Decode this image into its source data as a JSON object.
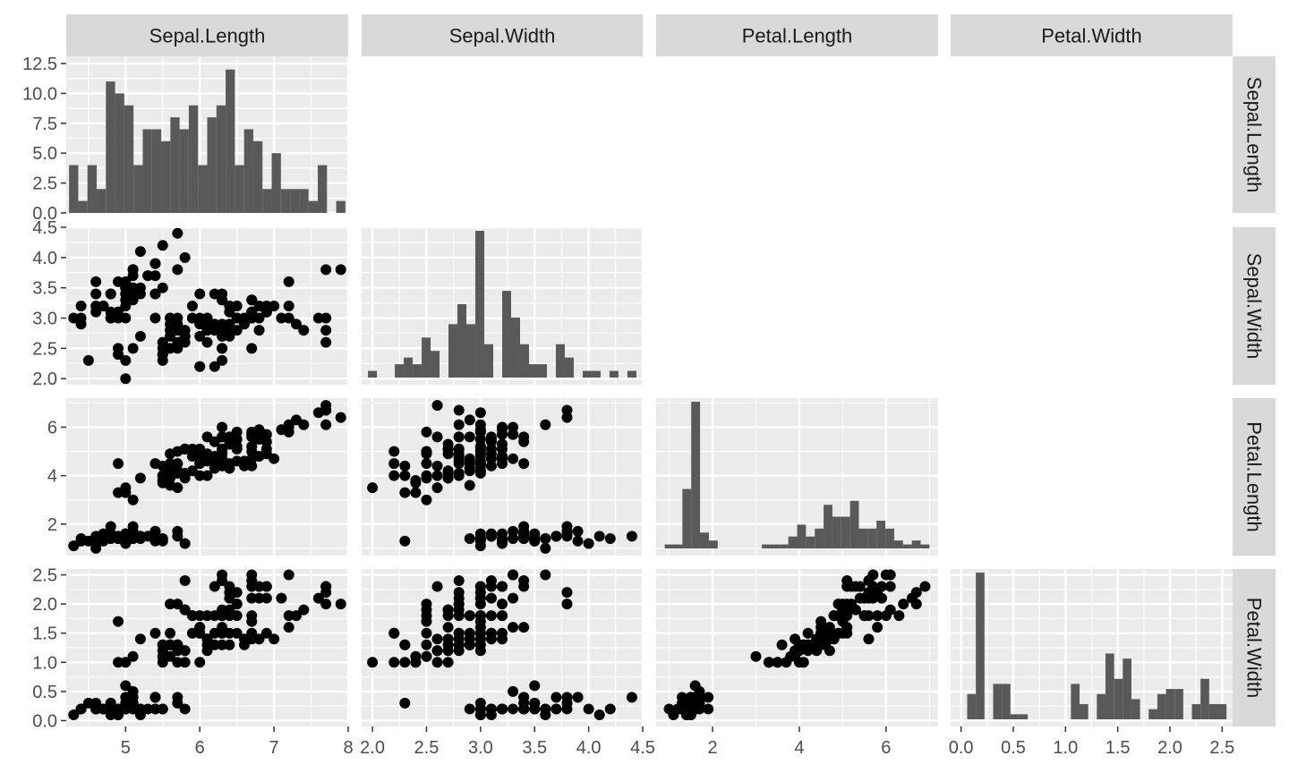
{
  "chart_data": {
    "type": "scatter",
    "variables": [
      "Sepal.Length",
      "Sepal.Width",
      "Petal.Length",
      "Petal.Width"
    ],
    "layout": "lower-triangle scatterplot matrix; histograms on diagonal; column strips on top, row strips on right",
    "grid": true,
    "x_ticks": [
      [
        "5",
        "6",
        "7",
        "8"
      ],
      [
        "2.0",
        "2.5",
        "3.0",
        "3.5",
        "4.0",
        "4.5"
      ],
      [
        "2",
        "4",
        "6"
      ],
      [
        "0.0",
        "0.5",
        "1.0",
        "1.5",
        "2.0",
        "2.5"
      ]
    ],
    "y_ticks": [
      [
        "0.0",
        "2.5",
        "5.0",
        "7.5",
        "10.0",
        "12.5"
      ],
      [
        "2.0",
        "2.5",
        "3.0",
        "3.5",
        "4.0",
        "4.5"
      ],
      [
        "2",
        "4",
        "6"
      ],
      [
        "0.0",
        "0.5",
        "1.0",
        "1.5",
        "2.0",
        "2.5"
      ]
    ],
    "histograms": [
      {
        "variable": "Sepal.Length",
        "bins": 30,
        "range": [
          4.3,
          7.9
        ],
        "counts": [
          4,
          1,
          4,
          2,
          11,
          10,
          9,
          4,
          7,
          7,
          6,
          8,
          7,
          9,
          4,
          8,
          9,
          12,
          4,
          7,
          6,
          2,
          5,
          2,
          2,
          2,
          1,
          4,
          0,
          1
        ]
      },
      {
        "variable": "Sepal.Width",
        "bins": 30,
        "range": [
          2.0,
          4.4
        ],
        "counts": [
          1,
          0,
          0,
          2,
          3,
          2,
          6,
          4,
          0,
          8,
          11,
          8,
          22,
          5,
          0,
          13,
          9,
          5,
          2,
          2,
          0,
          5,
          3,
          0,
          1,
          1,
          0,
          1,
          0,
          1
        ]
      },
      {
        "variable": "Petal.Length",
        "bins": 30,
        "range": [
          1.0,
          6.9
        ],
        "counts": [
          1,
          1,
          15,
          37,
          4,
          2,
          0,
          0,
          0,
          0,
          0,
          1,
          1,
          1,
          3,
          6,
          3,
          5,
          11,
          8,
          8,
          12,
          5,
          5,
          7,
          5,
          2,
          1,
          2,
          1
        ]
      },
      {
        "variable": "Petal.Width",
        "bins": 30,
        "range": [
          0.1,
          2.5
        ],
        "counts": [
          5,
          29,
          0,
          7,
          7,
          1,
          1,
          0,
          0,
          0,
          0,
          0,
          7,
          3,
          0,
          5,
          13,
          8,
          12,
          4,
          0,
          2,
          5,
          6,
          6,
          0,
          3,
          8,
          3,
          3
        ]
      }
    ],
    "observations": [
      [
        5.1,
        3.5,
        1.4,
        0.2
      ],
      [
        4.9,
        3.0,
        1.4,
        0.2
      ],
      [
        4.7,
        3.2,
        1.3,
        0.2
      ],
      [
        4.6,
        3.1,
        1.5,
        0.2
      ],
      [
        5.0,
        3.6,
        1.4,
        0.2
      ],
      [
        5.4,
        3.9,
        1.7,
        0.4
      ],
      [
        4.6,
        3.4,
        1.4,
        0.3
      ],
      [
        5.0,
        3.4,
        1.5,
        0.2
      ],
      [
        4.4,
        2.9,
        1.4,
        0.2
      ],
      [
        4.9,
        3.1,
        1.5,
        0.1
      ],
      [
        5.4,
        3.7,
        1.5,
        0.2
      ],
      [
        4.8,
        3.4,
        1.6,
        0.2
      ],
      [
        4.8,
        3.0,
        1.4,
        0.1
      ],
      [
        4.3,
        3.0,
        1.1,
        0.1
      ],
      [
        5.8,
        4.0,
        1.2,
        0.2
      ],
      [
        5.7,
        4.4,
        1.5,
        0.4
      ],
      [
        5.4,
        3.9,
        1.3,
        0.4
      ],
      [
        5.1,
        3.5,
        1.4,
        0.3
      ],
      [
        5.7,
        3.8,
        1.7,
        0.3
      ],
      [
        5.1,
        3.8,
        1.5,
        0.3
      ],
      [
        5.4,
        3.4,
        1.7,
        0.2
      ],
      [
        5.1,
        3.7,
        1.5,
        0.4
      ],
      [
        4.6,
        3.6,
        1.0,
        0.2
      ],
      [
        5.1,
        3.3,
        1.7,
        0.5
      ],
      [
        4.8,
        3.4,
        1.9,
        0.2
      ],
      [
        5.0,
        3.0,
        1.6,
        0.2
      ],
      [
        5.0,
        3.4,
        1.6,
        0.4
      ],
      [
        5.2,
        3.5,
        1.5,
        0.2
      ],
      [
        5.2,
        3.4,
        1.4,
        0.2
      ],
      [
        4.7,
        3.2,
        1.6,
        0.2
      ],
      [
        4.8,
        3.1,
        1.6,
        0.2
      ],
      [
        5.4,
        3.4,
        1.5,
        0.4
      ],
      [
        5.2,
        4.1,
        1.5,
        0.1
      ],
      [
        5.5,
        4.2,
        1.4,
        0.2
      ],
      [
        4.9,
        3.1,
        1.5,
        0.2
      ],
      [
        5.0,
        3.2,
        1.2,
        0.2
      ],
      [
        5.5,
        3.5,
        1.3,
        0.2
      ],
      [
        4.9,
        3.6,
        1.4,
        0.1
      ],
      [
        4.4,
        3.0,
        1.3,
        0.2
      ],
      [
        5.1,
        3.4,
        1.5,
        0.2
      ],
      [
        5.0,
        3.5,
        1.3,
        0.3
      ],
      [
        4.5,
        2.3,
        1.3,
        0.3
      ],
      [
        4.4,
        3.2,
        1.3,
        0.2
      ],
      [
        5.0,
        3.5,
        1.6,
        0.6
      ],
      [
        5.1,
        3.8,
        1.9,
        0.4
      ],
      [
        4.8,
        3.0,
        1.4,
        0.3
      ],
      [
        5.1,
        3.8,
        1.6,
        0.2
      ],
      [
        4.6,
        3.2,
        1.4,
        0.2
      ],
      [
        5.3,
        3.7,
        1.5,
        0.2
      ],
      [
        5.0,
        3.3,
        1.4,
        0.2
      ],
      [
        7.0,
        3.2,
        4.7,
        1.4
      ],
      [
        6.4,
        3.2,
        4.5,
        1.5
      ],
      [
        6.9,
        3.1,
        4.9,
        1.5
      ],
      [
        5.5,
        2.3,
        4.0,
        1.3
      ],
      [
        6.5,
        2.8,
        4.6,
        1.5
      ],
      [
        5.7,
        2.8,
        4.5,
        1.3
      ],
      [
        6.3,
        3.3,
        4.7,
        1.6
      ],
      [
        4.9,
        2.4,
        3.3,
        1.0
      ],
      [
        6.6,
        2.9,
        4.6,
        1.3
      ],
      [
        5.2,
        2.7,
        3.9,
        1.4
      ],
      [
        5.0,
        2.0,
        3.5,
        1.0
      ],
      [
        5.9,
        3.0,
        4.2,
        1.5
      ],
      [
        6.0,
        2.2,
        4.0,
        1.0
      ],
      [
        6.1,
        2.9,
        4.7,
        1.4
      ],
      [
        5.6,
        2.9,
        3.6,
        1.3
      ],
      [
        6.7,
        3.1,
        4.4,
        1.4
      ],
      [
        5.6,
        3.0,
        4.5,
        1.5
      ],
      [
        5.8,
        2.7,
        4.1,
        1.0
      ],
      [
        6.2,
        2.2,
        4.5,
        1.5
      ],
      [
        5.6,
        2.5,
        3.9,
        1.1
      ],
      [
        5.9,
        3.2,
        4.8,
        1.8
      ],
      [
        6.1,
        2.8,
        4.0,
        1.3
      ],
      [
        6.3,
        2.5,
        4.9,
        1.5
      ],
      [
        6.1,
        2.8,
        4.7,
        1.2
      ],
      [
        6.4,
        2.9,
        4.3,
        1.3
      ],
      [
        6.6,
        3.0,
        4.4,
        1.4
      ],
      [
        6.8,
        2.8,
        4.8,
        1.4
      ],
      [
        6.7,
        3.0,
        5.0,
        1.7
      ],
      [
        6.0,
        2.9,
        4.5,
        1.5
      ],
      [
        5.7,
        2.6,
        3.5,
        1.0
      ],
      [
        5.5,
        2.4,
        3.8,
        1.1
      ],
      [
        5.5,
        2.4,
        3.7,
        1.0
      ],
      [
        5.8,
        2.7,
        3.9,
        1.2
      ],
      [
        6.0,
        2.7,
        5.1,
        1.6
      ],
      [
        5.4,
        3.0,
        4.5,
        1.5
      ],
      [
        6.0,
        3.4,
        4.5,
        1.6
      ],
      [
        6.7,
        3.1,
        4.7,
        1.5
      ],
      [
        6.3,
        2.3,
        4.4,
        1.3
      ],
      [
        5.6,
        3.0,
        4.1,
        1.3
      ],
      [
        5.5,
        2.5,
        4.0,
        1.3
      ],
      [
        5.5,
        2.6,
        4.4,
        1.2
      ],
      [
        6.1,
        3.0,
        4.6,
        1.4
      ],
      [
        5.8,
        2.6,
        4.0,
        1.2
      ],
      [
        5.0,
        2.3,
        3.3,
        1.0
      ],
      [
        5.6,
        2.7,
        4.2,
        1.3
      ],
      [
        5.7,
        3.0,
        4.2,
        1.2
      ],
      [
        5.7,
        2.9,
        4.2,
        1.3
      ],
      [
        6.2,
        2.9,
        4.3,
        1.3
      ],
      [
        5.1,
        2.5,
        3.0,
        1.1
      ],
      [
        5.7,
        2.8,
        4.1,
        1.3
      ],
      [
        6.3,
        3.3,
        6.0,
        2.5
      ],
      [
        5.8,
        2.7,
        5.1,
        1.9
      ],
      [
        7.1,
        3.0,
        5.9,
        2.1
      ],
      [
        6.3,
        2.9,
        5.6,
        1.8
      ],
      [
        6.5,
        3.0,
        5.8,
        2.2
      ],
      [
        7.6,
        3.0,
        6.6,
        2.1
      ],
      [
        4.9,
        2.5,
        4.5,
        1.7
      ],
      [
        7.3,
        2.9,
        6.3,
        1.8
      ],
      [
        6.7,
        2.5,
        5.8,
        1.8
      ],
      [
        7.2,
        3.6,
        6.1,
        2.5
      ],
      [
        6.5,
        3.2,
        5.1,
        2.0
      ],
      [
        6.4,
        2.7,
        5.3,
        1.9
      ],
      [
        6.8,
        3.0,
        5.5,
        2.1
      ],
      [
        5.7,
        2.5,
        5.0,
        2.0
      ],
      [
        5.8,
        2.8,
        5.1,
        2.4
      ],
      [
        6.4,
        3.2,
        5.3,
        2.3
      ],
      [
        6.5,
        3.0,
        5.5,
        1.8
      ],
      [
        7.7,
        3.8,
        6.7,
        2.2
      ],
      [
        7.7,
        2.6,
        6.9,
        2.3
      ],
      [
        6.0,
        2.2,
        5.0,
        1.5
      ],
      [
        6.9,
        3.2,
        5.7,
        2.3
      ],
      [
        5.6,
        2.8,
        4.9,
        2.0
      ],
      [
        7.7,
        2.8,
        6.7,
        2.0
      ],
      [
        6.3,
        2.7,
        4.9,
        1.8
      ],
      [
        6.7,
        3.3,
        5.7,
        2.1
      ],
      [
        7.2,
        3.2,
        6.0,
        1.8
      ],
      [
        6.2,
        2.8,
        4.8,
        1.8
      ],
      [
        6.1,
        3.0,
        4.9,
        1.8
      ],
      [
        6.4,
        2.8,
        5.6,
        2.1
      ],
      [
        7.2,
        3.0,
        5.8,
        1.6
      ],
      [
        7.4,
        2.8,
        6.1,
        1.9
      ],
      [
        7.9,
        3.8,
        6.4,
        2.0
      ],
      [
        6.4,
        2.8,
        5.6,
        2.2
      ],
      [
        6.3,
        2.8,
        5.1,
        1.5
      ],
      [
        6.1,
        2.6,
        5.6,
        1.4
      ],
      [
        7.7,
        3.0,
        6.1,
        2.3
      ],
      [
        6.3,
        3.4,
        5.6,
        2.4
      ],
      [
        6.4,
        3.1,
        5.5,
        1.8
      ],
      [
        6.0,
        3.0,
        4.8,
        1.8
      ],
      [
        6.9,
        3.1,
        5.4,
        2.1
      ],
      [
        6.7,
        3.1,
        5.6,
        2.4
      ],
      [
        6.9,
        3.1,
        5.1,
        2.3
      ],
      [
        5.8,
        2.7,
        5.1,
        1.9
      ],
      [
        6.8,
        3.2,
        5.9,
        2.3
      ],
      [
        6.7,
        3.3,
        5.7,
        2.5
      ],
      [
        6.7,
        3.0,
        5.2,
        2.3
      ],
      [
        6.3,
        2.5,
        5.0,
        1.9
      ],
      [
        6.5,
        3.0,
        5.2,
        2.0
      ],
      [
        6.2,
        3.4,
        5.4,
        2.3
      ],
      [
        5.9,
        3.0,
        5.1,
        1.8
      ]
    ]
  }
}
